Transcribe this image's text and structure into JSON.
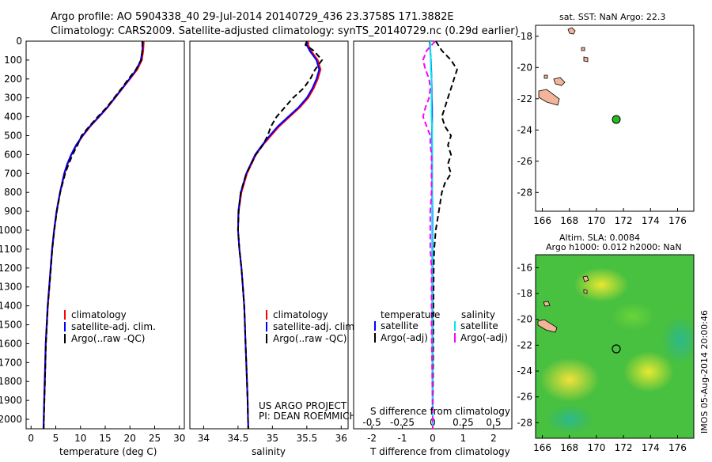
{
  "header": {
    "line1": "Argo profile: AO 5904338_40 29-Jul-2014 20140729_436 23.3758S 171.3882E",
    "line2": "Climatology: CARS2009. Satellite-adjusted climatology: synTS_20140729.nc (0.29d earlier)"
  },
  "colors": {
    "climatology": "#ff0000",
    "satellite": "#0000ff",
    "argo": "#000000",
    "sat_salinity": "#00e5ee",
    "argo_salinity": "#ff00ff",
    "land": "#f4b49a",
    "float_marker": "#22bb22"
  },
  "chart_data": [
    {
      "type": "line",
      "id": "temperature-profile",
      "xlabel": "temperature (deg C)",
      "xlim": [
        -1,
        31
      ],
      "xticks": [
        "0",
        "5",
        "10",
        "15",
        "20",
        "25",
        "30"
      ],
      "ylim": [
        0,
        2050
      ],
      "yticks": [
        "0",
        "100",
        "200",
        "300",
        "400",
        "500",
        "600",
        "700",
        "800",
        "900",
        "1000",
        "1100",
        "1200",
        "1300",
        "1400",
        "1500",
        "1600",
        "1700",
        "1800",
        "1900",
        "2000"
      ],
      "legend": [
        "climatology",
        "satellite-adj. clim.",
        "Argo(..raw -QC)"
      ],
      "depth": [
        0,
        50,
        100,
        150,
        200,
        250,
        300,
        350,
        400,
        450,
        500,
        550,
        600,
        650,
        700,
        800,
        900,
        1000,
        1100,
        1200,
        1300,
        1400,
        1500,
        1600,
        1700,
        1800,
        1900,
        2000,
        2050
      ],
      "series": [
        {
          "name": "climatology",
          "color": "#ff0000",
          "dash": false,
          "values": [
            22.8,
            22.7,
            22.4,
            21.5,
            20.0,
            18.5,
            17.0,
            15.5,
            13.8,
            12.0,
            10.5,
            9.2,
            8.2,
            7.4,
            6.8,
            5.9,
            5.2,
            4.7,
            4.3,
            4.0,
            3.7,
            3.4,
            3.2,
            3.0,
            2.9,
            2.8,
            2.7,
            2.6,
            2.55
          ]
        },
        {
          "name": "satellite-adj. clim.",
          "color": "#0000ff",
          "dash": false,
          "values": [
            22.6,
            22.5,
            22.2,
            21.3,
            19.9,
            18.4,
            16.9,
            15.4,
            13.7,
            11.9,
            10.4,
            9.1,
            8.1,
            7.3,
            6.7,
            5.85,
            5.15,
            4.65,
            4.25,
            3.95,
            3.65,
            3.35,
            3.15,
            2.95,
            2.85,
            2.75,
            2.65,
            2.55,
            2.5
          ]
        },
        {
          "name": "Argo(..raw -QC)",
          "color": "#000000",
          "dash": true,
          "values": [
            22.5,
            22.5,
            22.3,
            21.2,
            19.7,
            18.3,
            16.8,
            15.3,
            13.5,
            11.8,
            10.2,
            9.4,
            8.4,
            7.6,
            6.9,
            5.9,
            5.2,
            4.7,
            4.3,
            4.0,
            3.7,
            3.4,
            3.2,
            3.0,
            2.9,
            2.8,
            2.7,
            2.6,
            2.55
          ]
        }
      ]
    },
    {
      "type": "line",
      "id": "salinity-profile",
      "xlabel": "salinity",
      "xlim": [
        33.8,
        36.1
      ],
      "xticks": [
        "34",
        "34.5",
        "35",
        "35.5",
        "36"
      ],
      "ylim": [
        0,
        2050
      ],
      "legend": [
        "climatology",
        "satellite-adj. clim.",
        "Argo(..raw -QC)"
      ],
      "annotation": [
        "US ARGO PROJECT",
        "PI: DEAN ROEMMICH"
      ],
      "depth": [
        0,
        20,
        50,
        100,
        150,
        200,
        250,
        300,
        350,
        400,
        450,
        500,
        550,
        600,
        700,
        800,
        900,
        1000,
        1100,
        1200,
        1300,
        1400,
        1500,
        1600,
        1700,
        1800,
        1900,
        2000,
        2050
      ],
      "series": [
        {
          "name": "climatology",
          "color": "#ff0000",
          "dash": false,
          "values": [
            35.52,
            35.52,
            35.56,
            35.66,
            35.7,
            35.66,
            35.6,
            35.52,
            35.4,
            35.25,
            35.1,
            34.98,
            34.86,
            34.76,
            34.63,
            34.55,
            34.51,
            34.5,
            34.52,
            34.55,
            34.57,
            34.59,
            34.6,
            34.61,
            34.62,
            34.63,
            34.64,
            34.645,
            34.65
          ]
        },
        {
          "name": "satellite-adj. clim.",
          "color": "#0000ff",
          "dash": false,
          "values": [
            35.5,
            35.5,
            35.54,
            35.64,
            35.68,
            35.64,
            35.58,
            35.5,
            35.38,
            35.23,
            35.08,
            34.96,
            34.85,
            34.75,
            34.62,
            34.54,
            34.505,
            34.5,
            34.52,
            34.55,
            34.57,
            34.59,
            34.6,
            34.61,
            34.62,
            34.63,
            34.64,
            34.645,
            34.65
          ]
        },
        {
          "name": "Argo(..raw -QC)",
          "color": "#000000",
          "dash": true,
          "values": [
            35.5,
            35.48,
            35.6,
            35.72,
            35.62,
            35.55,
            35.45,
            35.3,
            35.18,
            35.06,
            34.98,
            34.93,
            34.86,
            34.76,
            34.62,
            34.54,
            34.51,
            34.5,
            34.52,
            34.55,
            34.57,
            34.59,
            34.6,
            34.61,
            34.62,
            34.63,
            34.64,
            34.645,
            34.65
          ]
        }
      ]
    },
    {
      "type": "line",
      "id": "difference-profile",
      "xlabel": "T difference from climatology",
      "x2label": "S difference from climatology",
      "xlim": [
        -2.6,
        2.6
      ],
      "xticks": [
        "-2",
        "-1",
        "0",
        "1",
        "2"
      ],
      "x2lim": [
        -0.65,
        0.65
      ],
      "x2ticks": [
        "-0.5",
        "-0.25",
        "0",
        "0.25",
        "0.5"
      ],
      "ylim": [
        0,
        2050
      ],
      "legend_titles": [
        "temperature",
        "salinity"
      ],
      "legend": [
        "satellite",
        "Argo(-adj)",
        "satellite",
        "Argo(-adj)"
      ],
      "depth": [
        0,
        50,
        100,
        150,
        200,
        250,
        300,
        350,
        400,
        450,
        500,
        550,
        600,
        650,
        700,
        750,
        800,
        900,
        1000,
        1100,
        1200,
        1500,
        2000,
        2050
      ],
      "series": [
        {
          "name": "T satellite",
          "color": "#0000ff",
          "dash": false,
          "values": [
            -0.1,
            -0.08,
            -0.06,
            -0.05,
            -0.04,
            -0.03,
            -0.03,
            -0.02,
            -0.02,
            -0.02,
            -0.03,
            -0.02,
            -0.02,
            -0.02,
            -0.02,
            -0.02,
            -0.02,
            -0.01,
            -0.01,
            -0.01,
            -0.01,
            -0.01,
            0,
            0
          ]
        },
        {
          "name": "T Argo(-adj)",
          "color": "#000000",
          "dash": true,
          "values": [
            0.1,
            0.3,
            0.6,
            0.8,
            0.7,
            0.6,
            0.5,
            0.4,
            0.3,
            0.4,
            0.6,
            0.5,
            0.6,
            0.5,
            0.6,
            0.4,
            0.3,
            0.2,
            0.1,
            0.05,
            0.03,
            0.02,
            0.0,
            0.0
          ]
        },
        {
          "name": "S satellite",
          "color": "#00e5ee",
          "dash": false,
          "values": [
            -0.02,
            -0.02,
            -0.015,
            -0.015,
            -0.01,
            -0.01,
            -0.01,
            -0.01,
            -0.01,
            -0.005,
            -0.005,
            -0.005,
            -0.005,
            -0.005,
            -0.005,
            -0.005,
            -0.005,
            -0.005,
            -0.005,
            -0.005,
            -0.005,
            -0.005,
            0,
            0
          ]
        },
        {
          "name": "S Argo(-adj)",
          "color": "#ff00ff",
          "dash": true,
          "values": [
            0.02,
            -0.05,
            -0.08,
            -0.06,
            -0.03,
            -0.02,
            -0.03,
            -0.06,
            -0.08,
            -0.05,
            -0.02,
            -0.02,
            -0.01,
            -0.01,
            -0.01,
            -0.01,
            -0.01,
            -0.02,
            -0.02,
            -0.02,
            -0.01,
            -0.01,
            0,
            0
          ]
        }
      ]
    }
  ],
  "maps": {
    "sst": {
      "title": "sat. SST: NaN Argo: 22.3",
      "xticks": [
        "166",
        "168",
        "170",
        "172",
        "174",
        "176"
      ],
      "yticks": [
        "-18",
        "-20",
        "-22",
        "-24",
        "-26",
        "-28"
      ]
    },
    "sla": {
      "title1": "Altim. SLA: 0.0084",
      "title2": "Argo h1000: 0.012 h2000: NaN",
      "xticks": [
        "166",
        "168",
        "170",
        "172",
        "174",
        "176"
      ],
      "yticks": [
        "-16",
        "-18",
        "-20",
        "-22",
        "-24",
        "-26",
        "-28"
      ]
    },
    "float_position": {
      "lon": 171.39,
      "lat": -23.38
    },
    "watermark": "IMOS 05-Aug-2014 20:00:46"
  }
}
